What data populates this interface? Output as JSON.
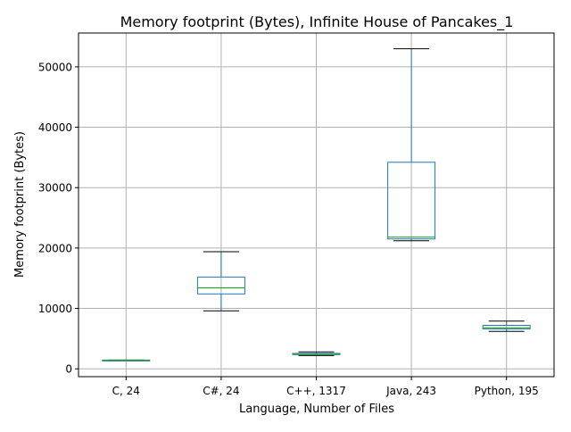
{
  "chart_data": {
    "type": "box",
    "title": "Memory footprint (Bytes), Infinite House of Pancakes_1",
    "xlabel": "Language, Number of Files",
    "ylabel": "Memory footprint (Bytes)",
    "ylim": [
      -1300,
      55600
    ],
    "yticks": [
      0,
      10000,
      20000,
      30000,
      40000,
      50000
    ],
    "grid": true,
    "categories": [
      "C, 24",
      "C#, 24",
      "C++, 1317",
      "Java, 243",
      "Python, 195"
    ],
    "boxes": [
      {
        "whisker_low": 1350,
        "q1": 1350,
        "median": 1400,
        "q3": 1450,
        "whisker_high": 1450
      },
      {
        "whisker_low": 9600,
        "q1": 12400,
        "median": 13400,
        "q3": 15200,
        "whisker_high": 19400
      },
      {
        "whisker_low": 2200,
        "q1": 2350,
        "median": 2450,
        "q3": 2550,
        "whisker_high": 2800
      },
      {
        "whisker_low": 21200,
        "q1": 21500,
        "median": 21800,
        "q3": 34200,
        "whisker_high": 53000
      },
      {
        "whisker_low": 6200,
        "q1": 6600,
        "median": 6800,
        "q3": 7200,
        "whisker_high": 7900
      }
    ],
    "colors": {
      "box": "#1f77b4",
      "median": "#2ca02c",
      "whisker_cap": "#000000",
      "grid": "#b0b0b0"
    }
  }
}
